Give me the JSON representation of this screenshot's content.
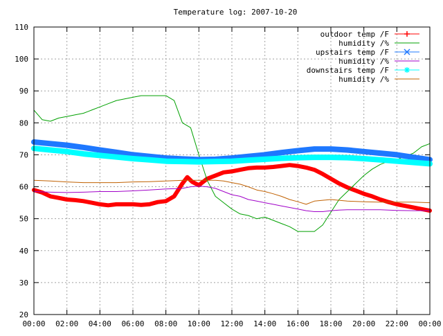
{
  "chart_data": {
    "type": "line",
    "title": "Temperature log: 2007-10-20",
    "xlabel": "",
    "ylabel": "",
    "x_ticks": [
      "00:00",
      "02:00",
      "04:00",
      "06:00",
      "08:00",
      "10:00",
      "12:00",
      "14:00",
      "16:00",
      "18:00",
      "20:00",
      "22:00",
      "00:00"
    ],
    "xlim_hours": [
      0,
      24
    ],
    "ylim": [
      20,
      110
    ],
    "y_ticks": [
      20,
      30,
      40,
      50,
      60,
      70,
      80,
      90,
      100,
      110
    ],
    "grid": true,
    "legend_position": "top-right",
    "series": [
      {
        "name": "outdoor temp /F",
        "color": "#ff0000",
        "marker": "plus",
        "width": 6,
        "x": [
          0,
          0.5,
          1,
          1.5,
          2,
          2.5,
          3,
          3.5,
          4,
          4.5,
          5,
          5.5,
          6,
          6.5,
          7,
          7.5,
          8,
          8.5,
          9,
          9.3,
          9.6,
          10,
          10.5,
          11,
          11.5,
          12,
          12.5,
          13,
          13.5,
          14,
          14.5,
          15,
          15.5,
          16,
          16.5,
          17,
          17.5,
          18,
          18.5,
          19,
          19.5,
          20,
          20.5,
          21,
          21.5,
          22,
          22.5,
          23,
          23.5,
          24
        ],
        "values": [
          59,
          58.2,
          57,
          56.5,
          56,
          55.8,
          55.5,
          55,
          54.5,
          54.2,
          54.5,
          54.5,
          54.5,
          54.3,
          54.5,
          55.2,
          55.5,
          57,
          61,
          63,
          61.5,
          60.5,
          62.5,
          63.5,
          64.5,
          64.8,
          65.3,
          65.8,
          66,
          66,
          66.2,
          66.5,
          66.8,
          66.5,
          66,
          65.3,
          64,
          62.5,
          61,
          59.8,
          58.8,
          57.8,
          57,
          56,
          55.2,
          54.5,
          54,
          53.5,
          53,
          52.5
        ]
      },
      {
        "name": "humidity /%",
        "color": "#00a000",
        "marker": "none",
        "width": 1,
        "x": [
          0,
          0.5,
          1,
          1.5,
          2,
          2.5,
          3,
          3.5,
          4,
          4.5,
          5,
          5.5,
          6,
          6.5,
          7,
          7.5,
          8,
          8.5,
          9,
          9.5,
          10,
          10.5,
          11,
          11.5,
          12,
          12.5,
          13,
          13.5,
          14,
          14.5,
          15,
          15.5,
          16,
          16.5,
          17,
          17.5,
          18,
          18.5,
          19,
          19.5,
          20,
          20.5,
          21,
          21.5,
          22,
          22.5,
          23,
          23.5,
          24
        ],
        "values": [
          84,
          81,
          80.5,
          81.5,
          82,
          82.5,
          83,
          84,
          85,
          86,
          87,
          87.5,
          88,
          88.5,
          88.5,
          88.5,
          88.5,
          87,
          80,
          78.5,
          70,
          62,
          57,
          55,
          53,
          51.5,
          51,
          50,
          50.5,
          49.5,
          48.5,
          47.5,
          46,
          46,
          46,
          48,
          52,
          56,
          58.5,
          61,
          63.5,
          65.5,
          67,
          68,
          68.5,
          69.5,
          70.5,
          72.5,
          73.5
        ]
      },
      {
        "name": "upstairs temp /F",
        "color": "#1e78ff",
        "marker": "cross",
        "width": 8,
        "x": [
          0,
          1,
          2,
          3,
          4,
          5,
          6,
          7,
          8,
          9,
          10,
          11,
          12,
          13,
          14,
          15,
          16,
          17,
          18,
          19,
          20,
          21,
          22,
          23,
          24
        ],
        "values": [
          74,
          73.5,
          73,
          72.3,
          71.5,
          70.8,
          70,
          69.5,
          69,
          68.7,
          68.5,
          68.6,
          69,
          69.5,
          70,
          70.7,
          71.3,
          71.8,
          71.8,
          71.5,
          71,
          70.5,
          70,
          69.2,
          68.5
        ]
      },
      {
        "name": "humidity /%",
        "color": "#a000c8",
        "marker": "none",
        "width": 1,
        "x": [
          0,
          1,
          2,
          3,
          4,
          5,
          6,
          7,
          8,
          9,
          9.5,
          10,
          10.5,
          11,
          11.5,
          12,
          12.5,
          13,
          13.5,
          14,
          14.5,
          15,
          15.5,
          16,
          16.5,
          17,
          17.5,
          18,
          18.5,
          19,
          20,
          21,
          22,
          23,
          24
        ],
        "values": [
          58.5,
          58.3,
          58.2,
          58.3,
          58.5,
          58.5,
          58.7,
          59,
          59.3,
          59.5,
          60,
          60.2,
          60,
          59.5,
          58.5,
          57.5,
          57,
          56,
          55.5,
          55,
          54.5,
          54,
          53.5,
          53,
          52.5,
          52.2,
          52.2,
          52.5,
          52.7,
          52.8,
          52.8,
          52.8,
          52.6,
          52.5,
          52.5
        ]
      },
      {
        "name": "downstairs temp /F",
        "color": "#00ffff",
        "marker": "star",
        "width": 8,
        "x": [
          0,
          1,
          2,
          3,
          4,
          5,
          6,
          7,
          8,
          9,
          10,
          11,
          12,
          13,
          14,
          15,
          16,
          17,
          18,
          19,
          20,
          21,
          22,
          23,
          24
        ],
        "values": [
          72,
          71.5,
          71,
          70.3,
          69.8,
          69.3,
          68.8,
          68.4,
          68,
          67.9,
          67.8,
          67.9,
          68,
          68.3,
          68.6,
          68.9,
          69.1,
          69.2,
          69.2,
          69.1,
          68.8,
          68.4,
          68,
          67.6,
          67.2
        ]
      },
      {
        "name": "humidity /%",
        "color": "#c06000",
        "marker": "none",
        "width": 1,
        "x": [
          0,
          1,
          2,
          3,
          4,
          5,
          6,
          7,
          8,
          9,
          10,
          10.5,
          11,
          11.5,
          12,
          12.5,
          13,
          13.5,
          14,
          14.5,
          15,
          15.5,
          16,
          16.5,
          17,
          18,
          19,
          20,
          21,
          22,
          23,
          24
        ],
        "values": [
          62,
          61.8,
          61.5,
          61.3,
          61.3,
          61.3,
          61.5,
          61.6,
          61.8,
          62,
          62,
          62,
          62,
          61.8,
          61.3,
          60.8,
          60,
          59,
          58.5,
          57.8,
          57,
          56,
          55.3,
          54.5,
          55.5,
          56,
          55.5,
          55.3,
          55.2,
          55.2,
          55.2,
          55
        ]
      }
    ]
  }
}
